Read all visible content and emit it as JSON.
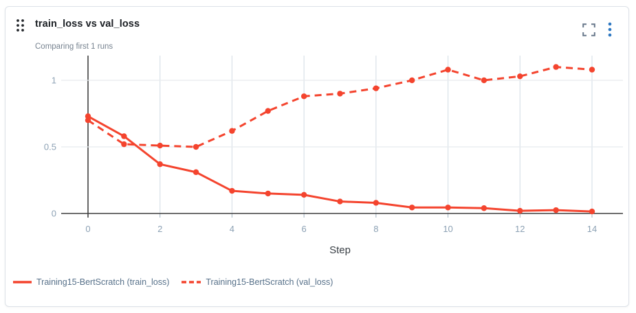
{
  "header": {
    "title": "train_loss vs val_loss",
    "subtitle": "Comparing first 1 runs"
  },
  "icons": {
    "drag_handle": "drag-handle-icon",
    "fullscreen": "fullscreen-icon",
    "menu": "kebab-menu-icon"
  },
  "colors": {
    "series_red": "#f4442e",
    "kebab_blue": "#2e78c2",
    "icon_gray": "#67778a",
    "drag_dot": "#23272b",
    "grid_horizontal": "#e7ebee",
    "grid_vertical": "#d9e1e8",
    "axis_dark": "#404040",
    "tick_mark": "#9fb0bd",
    "tick_label": "#8ca1b4",
    "card_border": "#dde2e8"
  },
  "chart_data": {
    "type": "line",
    "x": [
      0,
      1,
      2,
      3,
      4,
      5,
      6,
      7,
      8,
      9,
      10,
      11,
      12,
      13,
      14
    ],
    "series": [
      {
        "name": "Training15-BertScratch (train_loss)",
        "style": "solid",
        "values": [
          0.73,
          0.58,
          0.37,
          0.31,
          0.17,
          0.15,
          0.14,
          0.09,
          0.08,
          0.045,
          0.045,
          0.04,
          0.02,
          0.025,
          0.015
        ]
      },
      {
        "name": "Training15-BertScratch (val_loss)",
        "style": "dashed",
        "values": [
          0.7,
          0.52,
          0.51,
          0.5,
          0.62,
          0.77,
          0.88,
          0.9,
          0.94,
          1.0,
          1.08,
          1.0,
          1.03,
          1.1,
          1.08
        ]
      }
    ],
    "title": "train_loss vs val_loss",
    "xlabel": "Step",
    "ylabel": "",
    "x_ticks": [
      0,
      2,
      4,
      6,
      8,
      10,
      12,
      14
    ],
    "y_ticks": [
      0,
      0.5,
      1
    ],
    "xlim": [
      0,
      14
    ],
    "ylim": [
      0,
      1.19
    ],
    "grid": true,
    "legend_position": "bottom-left",
    "line_color": "#f4442e"
  }
}
